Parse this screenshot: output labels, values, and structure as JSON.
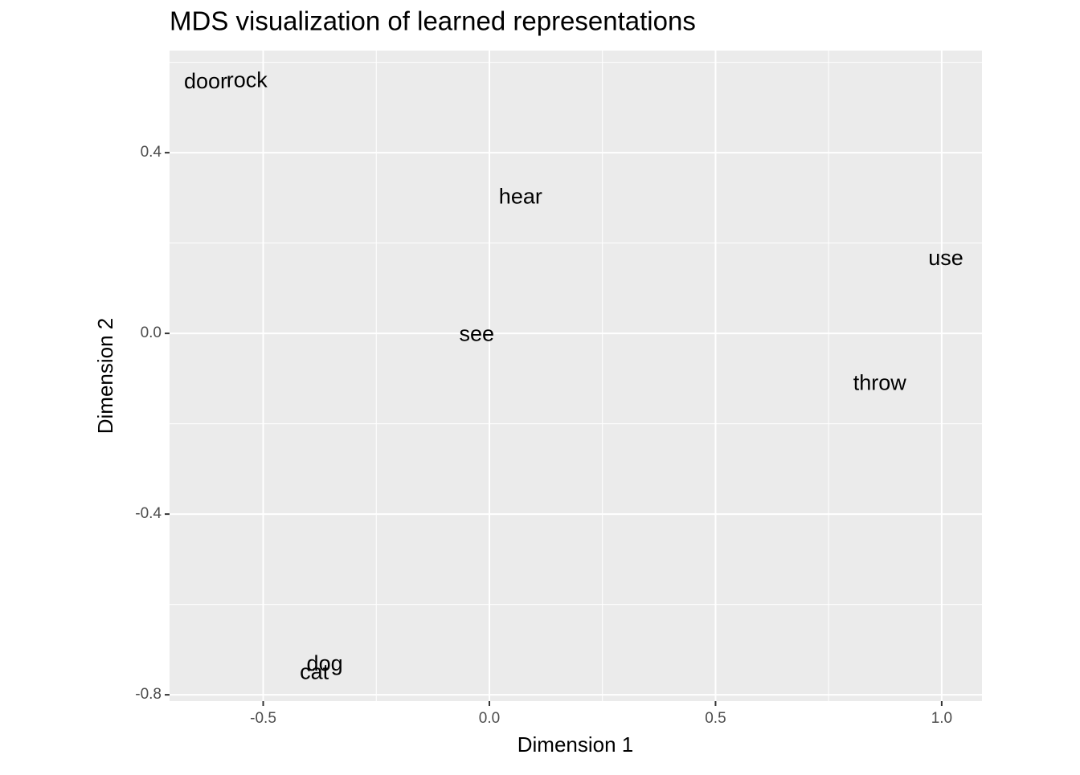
{
  "chart_data": {
    "type": "scatter",
    "title": "MDS visualization of learned representations",
    "x_label": "Dimension 1",
    "y_label": "Dimension 2",
    "labels": [
      "door",
      "rock",
      "hear",
      "use",
      "see",
      "throw",
      "dog",
      "cat"
    ],
    "x": [
      -0.627,
      -0.536,
      0.069,
      1.009,
      -0.028,
      0.863,
      -0.364,
      -0.387
    ],
    "values": [
      0.555,
      0.558,
      0.3,
      0.164,
      -0.004,
      -0.112,
      -0.734,
      -0.752
    ],
    "xlim": [
      -0.707,
      1.089
    ],
    "ylim": [
      -0.814,
      0.626
    ],
    "xticks": [
      -0.5,
      {
        "value": 0,
        "label": "0.0"
      },
      0.5,
      {
        "value": 1,
        "label": "1.0"
      }
    ],
    "yticks": [
      {
        "value": -0.8,
        "label": "-0.8"
      },
      {
        "value": -0.4,
        "label": "-0.4"
      },
      {
        "value": 0,
        "label": "0.0"
      },
      {
        "value": 0.4,
        "label": "0.4"
      }
    ],
    "grid": true,
    "color": "#000000",
    "background": "#ebebeb"
  }
}
